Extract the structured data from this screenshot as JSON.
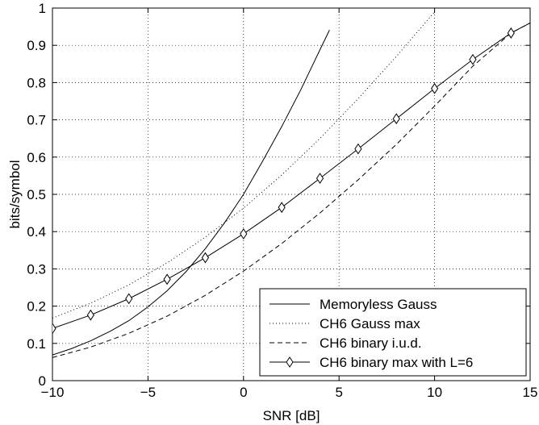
{
  "chart_data": {
    "type": "line",
    "xlabel": "SNR [dB]",
    "ylabel": "bits/symbol",
    "xlim": [
      -10,
      15
    ],
    "ylim": [
      0,
      1
    ],
    "xticks": [
      -10,
      -5,
      0,
      5,
      10,
      15
    ],
    "xtick_labels": [
      "−10",
      "−5",
      "0",
      "5",
      "10",
      "15"
    ],
    "yticks": [
      0,
      0.1,
      0.2,
      0.3,
      0.4,
      0.5,
      0.6,
      0.7,
      0.8,
      0.9,
      1
    ],
    "ytick_labels": [
      "0",
      "0.1",
      "0.2",
      "0.3",
      "0.4",
      "0.5",
      "0.6",
      "0.7",
      "0.8",
      "0.9",
      "1"
    ],
    "grid": true,
    "legend_position": "bottom-right",
    "series": [
      {
        "name": "Memoryless Gauss",
        "style": "solid",
        "marker": "none",
        "x": [
          -10,
          -9,
          -8,
          -7,
          -6,
          -5,
          -4,
          -3,
          -2,
          -1,
          0,
          1,
          2,
          3,
          4,
          4.5
        ],
        "y": [
          0.069,
          0.086,
          0.107,
          0.132,
          0.161,
          0.198,
          0.241,
          0.293,
          0.354,
          0.423,
          0.5,
          0.589,
          0.682,
          0.781,
          0.888,
          0.941
        ]
      },
      {
        "name": "CH6 Gauss max",
        "style": "dotted",
        "marker": "none",
        "x": [
          -10,
          -8,
          -6,
          -4,
          -2,
          0,
          2,
          4,
          6,
          8,
          10
        ],
        "y": [
          0.168,
          0.208,
          0.257,
          0.316,
          0.385,
          0.463,
          0.552,
          0.65,
          0.757,
          0.87,
          0.99
        ]
      },
      {
        "name": "CH6 binary i.u.d.",
        "style": "dashed",
        "marker": "none",
        "x": [
          -10,
          -8,
          -6,
          -4,
          -2,
          0,
          2,
          4,
          6,
          8,
          10,
          12,
          14,
          15
        ],
        "y": [
          0.062,
          0.09,
          0.127,
          0.173,
          0.229,
          0.294,
          0.368,
          0.45,
          0.539,
          0.634,
          0.737,
          0.844,
          0.933,
          0.96
        ]
      },
      {
        "name": "CH6 binary max with L=6",
        "style": "solid",
        "marker": "diamond",
        "x": [
          -10,
          -8,
          -6,
          -4,
          -2,
          0,
          2,
          4,
          6,
          8,
          10,
          12,
          14,
          15
        ],
        "y": [
          0.14,
          0.176,
          0.22,
          0.272,
          0.33,
          0.394,
          0.465,
          0.543,
          0.622,
          0.703,
          0.784,
          0.862,
          0.933,
          0.96
        ],
        "marker_x": [
          -10,
          -8,
          -6,
          -4,
          -2,
          0,
          2,
          4,
          6,
          8,
          10,
          12,
          14
        ]
      }
    ]
  }
}
